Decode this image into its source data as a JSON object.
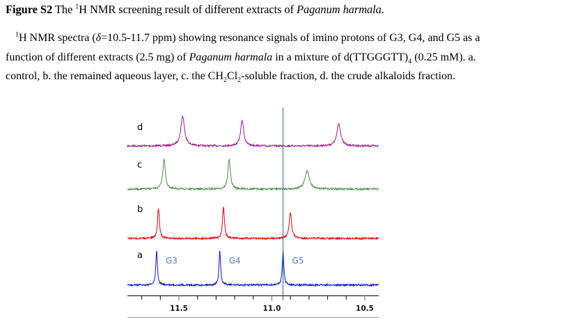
{
  "caption": {
    "label": "Figure S2",
    "title_pre": " The ",
    "title_sup": "1",
    "title_post": "H NMR screening result of different extracts of ",
    "title_species": "Paganum harmala",
    "title_end": ".",
    "line1_sup": "1",
    "line1_a": "H NMR spectra (",
    "line1_delta": "δ",
    "line1_b": "=10.5-11.7 ppm) showing resonance signals of imino protons of G3, G4, and G5 as a",
    "line2_a": "function of different extracts (2.5 mg) of ",
    "line2_species": "Paganum harmala",
    "line2_b": " in a mixture of d(TTGGGTT)",
    "line2_sub": "4",
    "line2_c": " (0.25 mM). a.",
    "line3_a": "control, b. the remained aqueous layer, c. the CH",
    "line3_sub1": "2",
    "line3_b": "Cl",
    "line3_sub2": "2",
    "line3_c": "-soluble fraction, d. the crude alkaloids fraction."
  },
  "chart_data": {
    "type": "line",
    "title": "",
    "xlabel": "",
    "ylabel": "",
    "x_unit": "ppm",
    "xlim": [
      11.8,
      10.45
    ],
    "x_reversed": true,
    "xticks_major": [
      11.5,
      11.0,
      10.5
    ],
    "xtick_labels": [
      "11.5",
      "11.0",
      "10.5"
    ],
    "xticks_minor_step": 0.1,
    "grid": false,
    "reference_line_ppm": 10.94,
    "peak_labels": [
      {
        "text": "G3",
        "trace": "a",
        "ppm": 11.62
      },
      {
        "text": "G4",
        "trace": "a",
        "ppm": 11.28
      },
      {
        "text": "G5",
        "trace": "a",
        "ppm": 10.94
      }
    ],
    "series": [
      {
        "name": "d",
        "description": "the crude alkaloids fraction",
        "color": "#A0168F",
        "peaks": [
          {
            "ppm": 11.48,
            "height": 1.0,
            "width": 0.012
          },
          {
            "ppm": 11.16,
            "height": 0.85,
            "width": 0.01
          },
          {
            "ppm": 10.64,
            "height": 0.75,
            "width": 0.012
          }
        ]
      },
      {
        "name": "c",
        "description": "the CH2Cl2-soluble fraction",
        "color": "#4E8C4E",
        "peaks": [
          {
            "ppm": 11.58,
            "height": 1.0,
            "width": 0.008
          },
          {
            "ppm": 11.23,
            "height": 0.98,
            "width": 0.008
          },
          {
            "ppm": 10.81,
            "height": 0.6,
            "width": 0.014
          }
        ]
      },
      {
        "name": "b",
        "description": "the remained aqueous layer",
        "color": "#E8000A",
        "peaks": [
          {
            "ppm": 11.61,
            "height": 0.95,
            "width": 0.006
          },
          {
            "ppm": 11.26,
            "height": 1.0,
            "width": 0.006
          },
          {
            "ppm": 10.9,
            "height": 0.8,
            "width": 0.008
          }
        ]
      },
      {
        "name": "a",
        "description": "control",
        "color": "#0A14D8",
        "peaks": [
          {
            "ppm": 11.62,
            "height": 1.0,
            "width": 0.005
          },
          {
            "ppm": 11.28,
            "height": 1.0,
            "width": 0.005
          },
          {
            "ppm": 10.94,
            "height": 1.0,
            "width": 0.005
          }
        ]
      }
    ]
  },
  "colors": {
    "reference_line": "#4A78B0",
    "axis": "#000000",
    "bottom_rule": "#9a9a9a"
  }
}
